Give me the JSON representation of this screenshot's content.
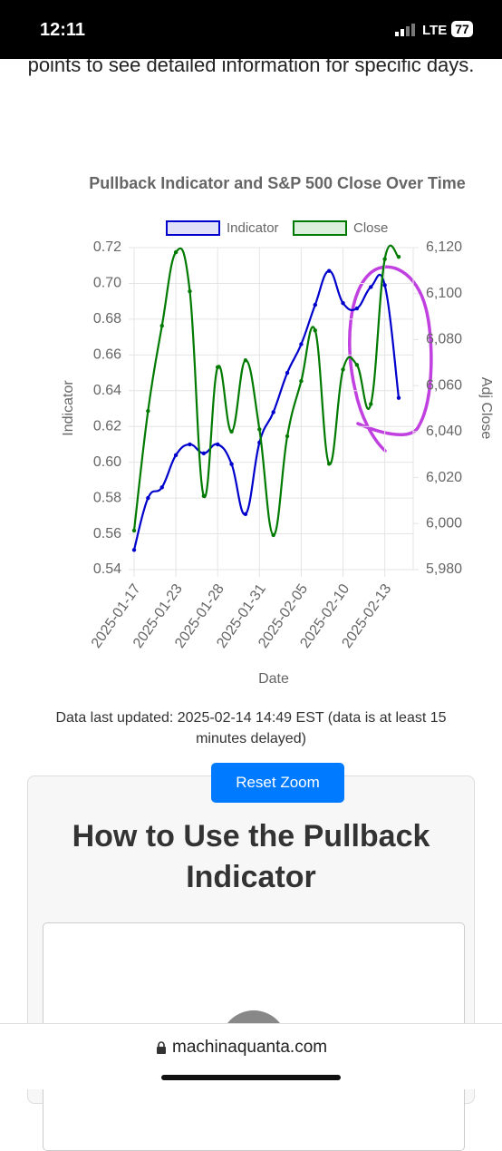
{
  "status_bar": {
    "time": "12:11",
    "network": "LTE",
    "battery": "77"
  },
  "page": {
    "intro_text": "points to see detailed information for specific days.",
    "updated_text": "Data last updated: 2025-02-14 14:49 EST (data is at least 15 minutes delayed)",
    "reset_button": "Reset Zoom",
    "card_heading": "How to Use the Pullback Indicator",
    "url": "machinaquanta.com"
  },
  "chart_data": {
    "type": "line",
    "title": "Pullback Indicator and S&P 500 Close Over Time",
    "x_label": "Date",
    "y_label": "Indicator",
    "y2_label": "Adj Close",
    "categories": [
      "2025-01-17",
      null,
      null,
      "2025-01-23",
      null,
      null,
      "2025-01-28",
      null,
      null,
      "2025-01-31",
      null,
      null,
      "2025-02-05",
      null,
      null,
      "2025-02-10",
      null,
      null,
      "2025-02-13",
      null
    ],
    "series": [
      {
        "name": "Indicator",
        "color": "#0000cc",
        "values": [
          0.551,
          0.58,
          0.586,
          0.604,
          0.61,
          0.605,
          0.61,
          0.599,
          0.571,
          0.611,
          0.628,
          0.65,
          0.666,
          0.688,
          0.707,
          0.689,
          0.686,
          0.698,
          0.699,
          0.636
        ]
      },
      {
        "name": "Close",
        "color": "#007a00",
        "axis": "y2",
        "values": [
          5997,
          6049,
          6086,
          6118,
          6101,
          6012,
          6068,
          6040,
          6071,
          6041,
          5995,
          6038,
          6062,
          6084,
          6026,
          6067,
          6069,
          6052,
          6115,
          6116
        ]
      }
    ],
    "ylim": [
      0.54,
      0.72
    ],
    "yticks": [
      0.54,
      0.56,
      0.58,
      {
        "value": 0.6,
        "label": "0.60"
      },
      0.62,
      0.64,
      0.66,
      0.68,
      {
        "value": 0.7,
        "label": "0.70"
      },
      0.72
    ],
    "y2lim": [
      5980,
      6120
    ],
    "y2ticks": [
      {
        "value": 5980,
        "label": "5,980"
      },
      {
        "value": 6000,
        "label": "6,000"
      },
      {
        "value": 6020,
        "label": "6,020"
      },
      {
        "value": 6040,
        "label": "6,040"
      },
      {
        "value": 6060,
        "label": "6,060"
      },
      {
        "value": 6080,
        "label": "6,080"
      },
      {
        "value": 6100,
        "label": "6,100"
      },
      {
        "value": 6120,
        "label": "6,120"
      }
    ],
    "grid": true
  }
}
